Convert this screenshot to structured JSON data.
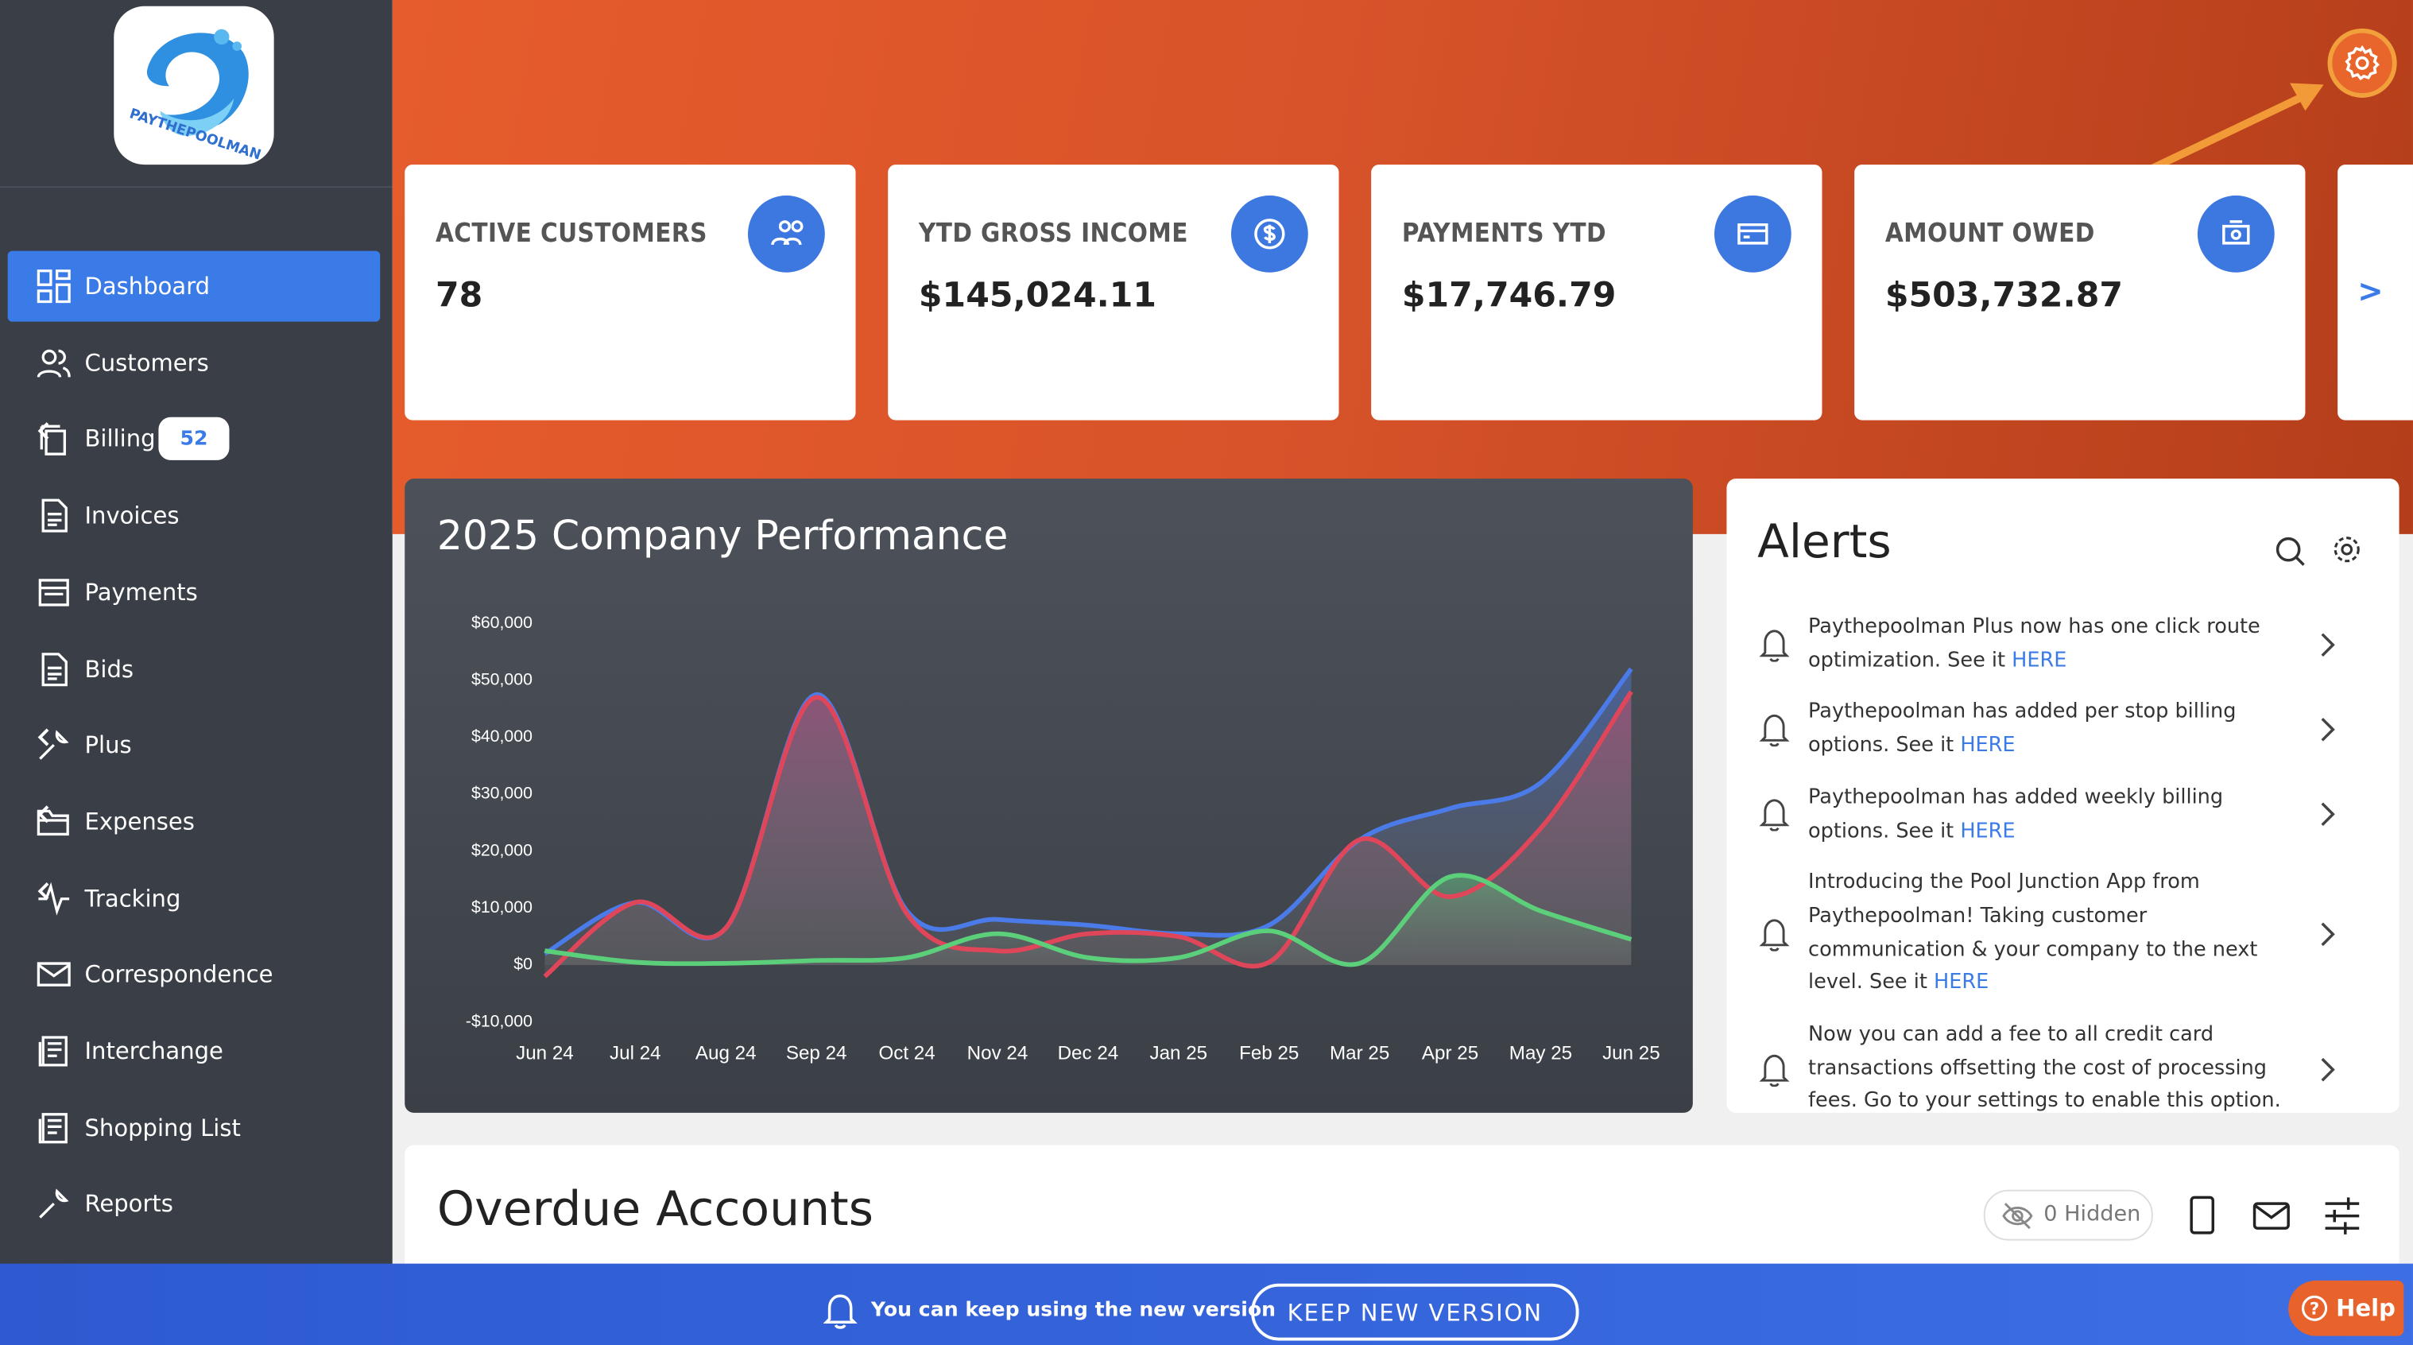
{
  "logo_text": "PAYTHEPOOLMAN",
  "nav": {
    "items": [
      {
        "label": "Dashboard",
        "active": true
      },
      {
        "label": "Customers"
      },
      {
        "label": "Billing",
        "badge": "52",
        "expandable": true
      },
      {
        "label": "Invoices"
      },
      {
        "label": "Payments"
      },
      {
        "label": "Bids"
      },
      {
        "label": "Plus",
        "expandable": true
      },
      {
        "label": "Expenses",
        "expandable": true
      },
      {
        "label": "Tracking",
        "expandable": true
      },
      {
        "label": "Correspondence"
      },
      {
        "label": "Interchange"
      },
      {
        "label": "Shopping List"
      },
      {
        "label": "Reports"
      }
    ]
  },
  "cards": [
    {
      "label": "ACTIVE CUSTOMERS",
      "value": "78"
    },
    {
      "label": "YTD GROSS INCOME",
      "value": "$145,024.11"
    },
    {
      "label": "PAYMENTS YTD",
      "value": "$17,746.79"
    },
    {
      "label": "AMOUNT OWED",
      "value": "$503,732.87"
    }
  ],
  "cards_next": ">",
  "chart_data": {
    "type": "line",
    "title": "2025 Company Performance",
    "categories": [
      "Jun 24",
      "Jul 24",
      "Aug 24",
      "Sep 24",
      "Oct 24",
      "Nov 24",
      "Dec 24",
      "Jan 25",
      "Feb 25",
      "Mar 25",
      "Apr 25",
      "May 25",
      "Jun 25"
    ],
    "series": [
      {
        "color": "#4a7be8",
        "values": [
          2000,
          11000,
          6500,
          47500,
          9500,
          8000,
          7000,
          5500,
          7000,
          22000,
          27500,
          32000,
          52000
        ]
      },
      {
        "color": "#e0465a",
        "values": [
          -2000,
          11000,
          6500,
          47000,
          9000,
          2500,
          5500,
          5000,
          500,
          22000,
          12000,
          24000,
          48000
        ]
      },
      {
        "color": "#5ccf7a",
        "values": [
          2500,
          500,
          300,
          800,
          1300,
          5500,
          1300,
          1300,
          6000,
          300,
          15500,
          9500,
          4500
        ]
      }
    ],
    "ylim": [
      -10000,
      60000
    ],
    "yticks": [
      {
        "value": -10000,
        "label": "-$10,000"
      },
      {
        "value": 0,
        "label": "$0"
      },
      {
        "value": 10000,
        "label": "$10,000"
      },
      {
        "value": 20000,
        "label": "$20,000"
      },
      {
        "value": 30000,
        "label": "$30,000"
      },
      {
        "value": 40000,
        "label": "$40,000"
      },
      {
        "value": 50000,
        "label": "$50,000"
      },
      {
        "value": 60000,
        "label": "$60,000"
      }
    ]
  },
  "alerts": {
    "title": "Alerts",
    "items": [
      {
        "text": "Paythepoolman Plus now has one click route optimization. See it",
        "link": "HERE"
      },
      {
        "text": "Paythepoolman has added per stop billing options. See it",
        "link": "HERE"
      },
      {
        "text": "Paythepoolman has added weekly billing options. See it",
        "link": "HERE"
      },
      {
        "text": "Introducing the Pool Junction App from Paythepoolman! Taking customer communication & your company to the next level. See it",
        "link": "HERE"
      },
      {
        "text": "Now you can add a fee to all credit card transactions offsetting the cost of processing fees. Go to your settings to enable this option."
      }
    ]
  },
  "overdue": {
    "title": "Overdue Accounts",
    "hidden": "0 Hidden"
  },
  "banner": {
    "message": "You can keep using the new version",
    "button": "KEEP NEW VERSION"
  },
  "help": "Help"
}
